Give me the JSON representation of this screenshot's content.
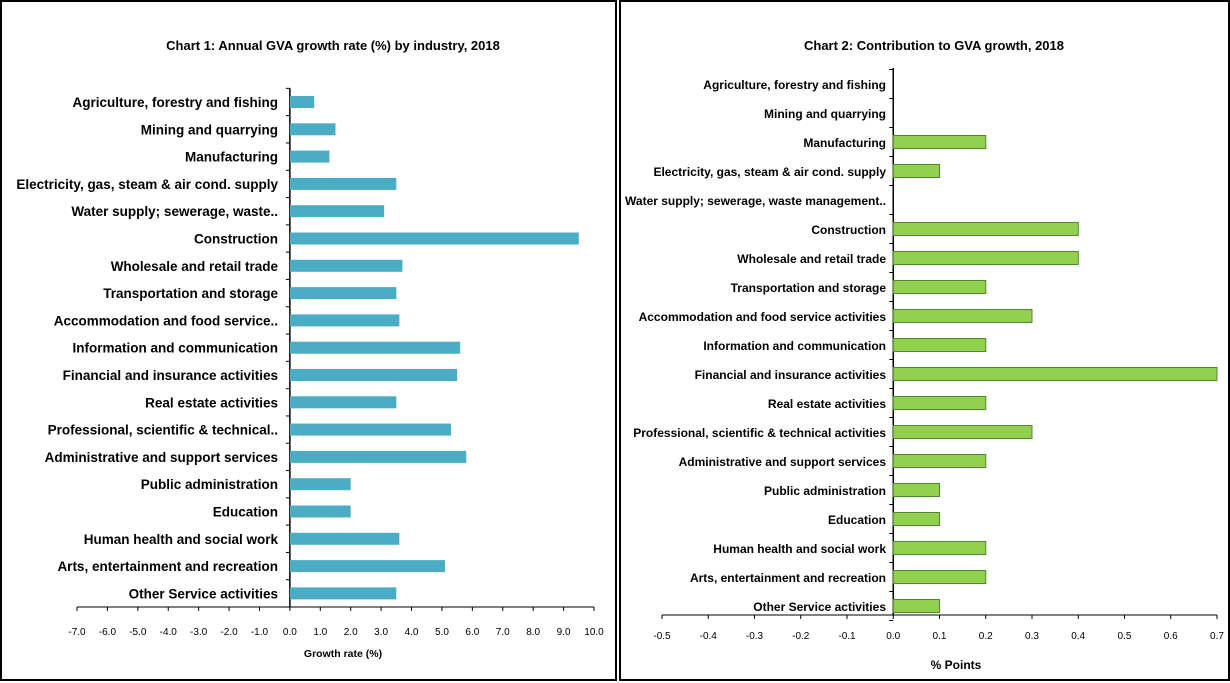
{
  "chart_data": [
    {
      "type": "bar",
      "orientation": "horizontal",
      "title": "Chart 1: Annual GVA growth rate (%) by industry, 2018",
      "xlabel": "Growth rate (%)",
      "xlim": [
        -7.0,
        10.0
      ],
      "xticks": [
        "-7.0",
        "-6.0",
        "-5.0",
        "-4.0",
        "-3.0",
        "-2.0",
        "-1.0",
        "0.0",
        "1.0",
        "2.0",
        "3.0",
        "4.0",
        "5.0",
        "6.0",
        "7.0",
        "8.0",
        "9.0",
        "10.0"
      ],
      "categories": [
        "Agriculture, forestry and fishing",
        "Mining and quarrying",
        "Manufacturing",
        "Electricity, gas, steam & air cond. supply",
        "Water supply; sewerage, waste..",
        "Construction",
        "Wholesale and retail trade",
        "Transportation and storage",
        "Accommodation and food service..",
        "Information and communication",
        "Financial and insurance activities",
        "Real estate activities",
        "Professional, scientific & technical..",
        "Administrative and support services",
        "Public administration",
        "Education",
        "Human health and social work",
        "Arts, entertainment and recreation",
        "Other Service activities"
      ],
      "values": [
        0.8,
        1.5,
        1.3,
        3.5,
        3.1,
        9.5,
        3.7,
        3.5,
        3.6,
        5.6,
        5.5,
        3.5,
        5.3,
        5.8,
        2.0,
        2.0,
        3.6,
        5.1,
        3.5
      ],
      "bar_color": "#4bacc6",
      "grid": false
    },
    {
      "type": "bar",
      "orientation": "horizontal",
      "title": "Chart 2: Contribution to GVA growth, 2018",
      "xlabel": "% Points",
      "xlim": [
        -0.5,
        0.7
      ],
      "xticks": [
        "-0.5",
        "-0.4",
        "-0.3",
        "-0.2",
        "-0.1",
        "0.0",
        "0.1",
        "0.2",
        "0.3",
        "0.4",
        "0.5",
        "0.6",
        "0.7"
      ],
      "categories": [
        "Agriculture,  forestry and fishing",
        "Mining and quarrying",
        "Manufacturing",
        "Electricity, gas, steam & air cond. supply",
        "Water supply; sewerage, waste management..",
        "Construction",
        "Wholesale and retail trade",
        "Transportation and storage",
        "Accommodation and food service activities",
        "Information and communication",
        "Financial and insurance activities",
        "Real estate activities",
        "Professional, scientific & technical  activities",
        "Administrative and support services",
        "Public administration",
        "Education",
        "Human health and social work",
        "Arts, entertainment and recreation",
        "Other Service activities"
      ],
      "values": [
        0.0,
        0.0,
        0.2,
        0.1,
        0.0,
        0.4,
        0.4,
        0.2,
        0.3,
        0.2,
        0.7,
        0.2,
        0.3,
        0.2,
        0.1,
        0.1,
        0.2,
        0.2,
        0.1
      ],
      "bar_color": "#92d050",
      "bar_stroke": "#4e8a2a",
      "grid": false
    }
  ]
}
